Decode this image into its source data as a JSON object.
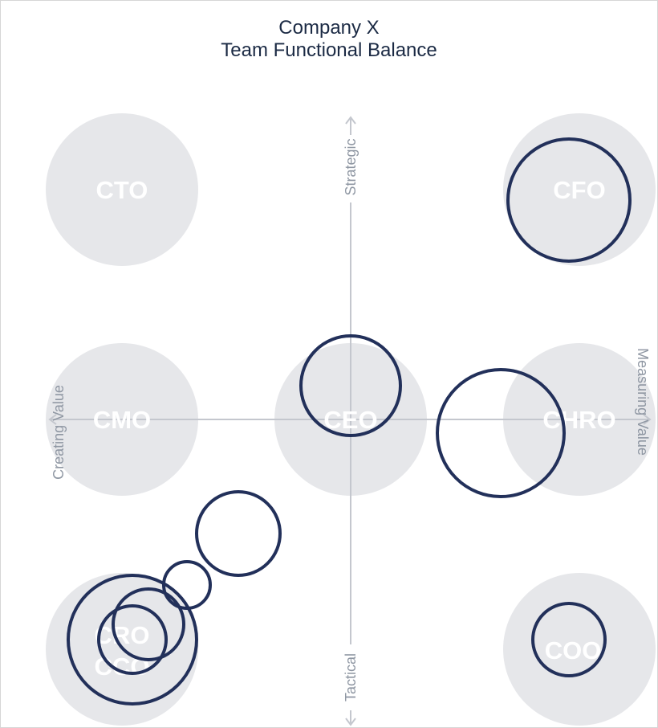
{
  "title_line1": "Company X",
  "title_line2": "Team Functional Balance",
  "axes": {
    "top": "Strategic",
    "bottom": "Tactical",
    "left": "Creating Value",
    "right": "Measuring Value"
  },
  "roles": [
    {
      "id": "cto",
      "label": "CTO"
    },
    {
      "id": "cfo",
      "label": "CFO"
    },
    {
      "id": "cmo",
      "label": "CMO"
    },
    {
      "id": "ceo",
      "label": "CEO"
    },
    {
      "id": "chro",
      "label": "CHRO"
    },
    {
      "id": "cro",
      "label": "CRO"
    },
    {
      "id": "cco",
      "label": "CCO"
    },
    {
      "id": "coo",
      "label": "COO"
    }
  ],
  "colors": {
    "background_circle": "#e6e7ea",
    "ring": "#22305a",
    "axis": "#c4c7ce",
    "title": "#1b2a44"
  }
}
